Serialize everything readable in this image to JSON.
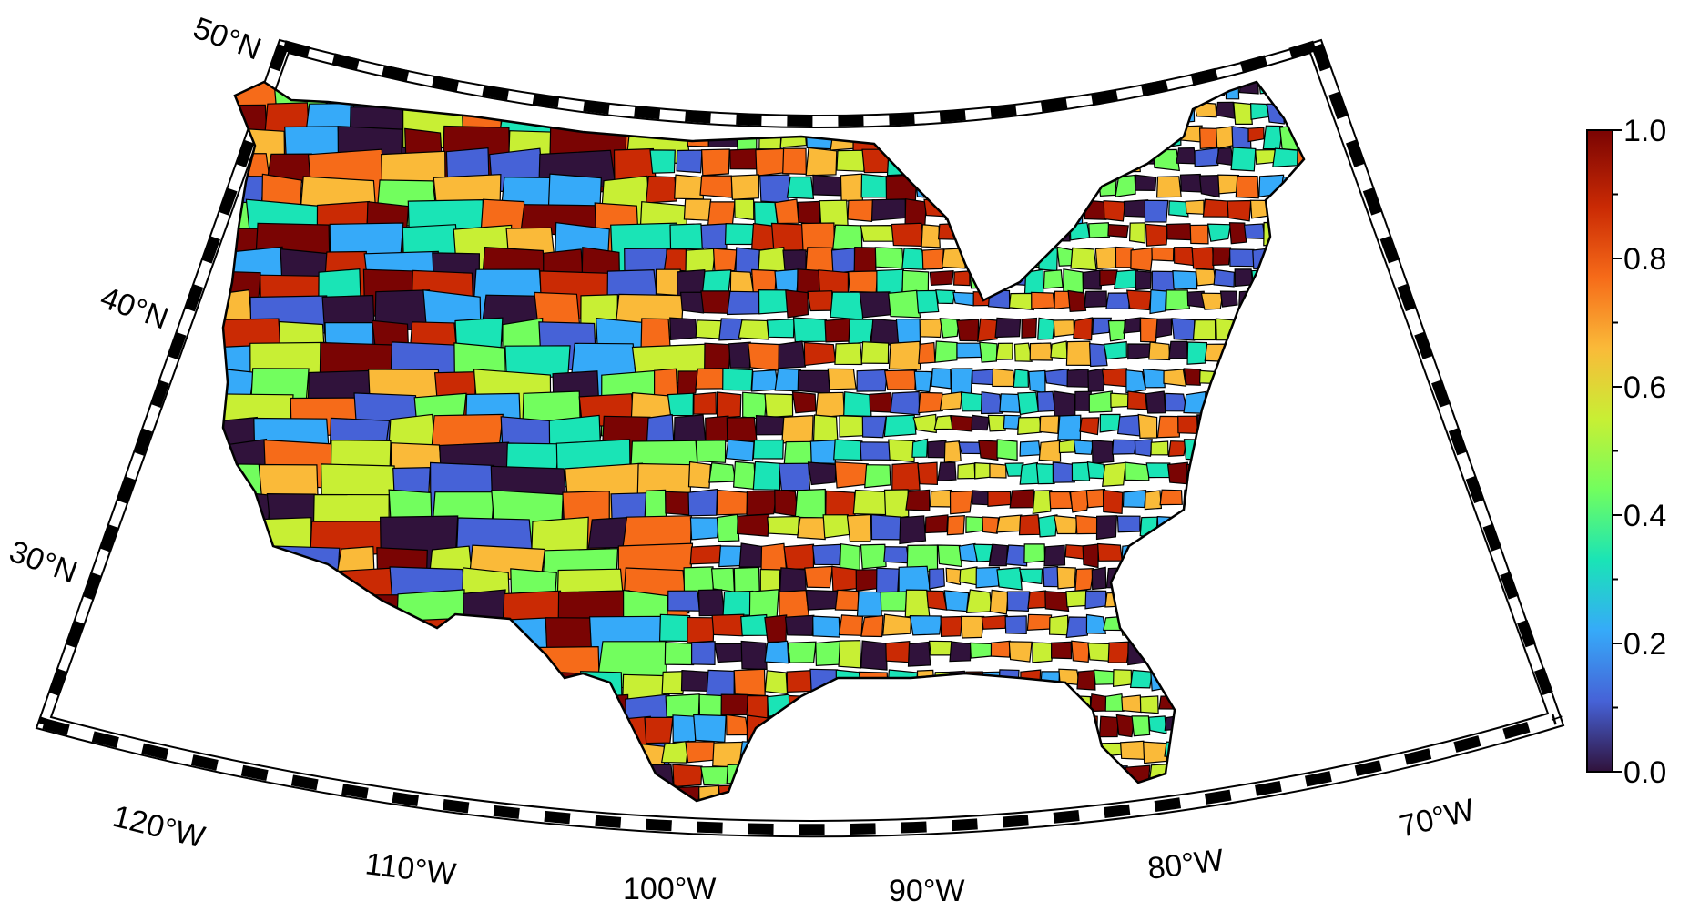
{
  "map": {
    "projection": "conic (Albers-like)",
    "region": "contiguous United States",
    "units": "counties",
    "border_color": "#000000",
    "colormap": "turbo",
    "longitude_labels": [
      "120°W",
      "110°W",
      "100°W",
      "90°W",
      "80°W",
      "70°W"
    ],
    "latitude_labels": [
      "30°N",
      "40°N",
      "50°N"
    ],
    "frame_style": "alternating black/white ticks"
  },
  "colorbar": {
    "min": 0.0,
    "max": 1.0,
    "tick_labels": [
      "0.0",
      "0.2",
      "0.4",
      "0.6",
      "0.8",
      "1.0"
    ],
    "colors": [
      "#30123b",
      "#4662d7",
      "#36aaf9",
      "#1ae4b6",
      "#72fe5e",
      "#c8ef34",
      "#faba39",
      "#f66b19",
      "#ca2a04",
      "#7a0403"
    ]
  }
}
